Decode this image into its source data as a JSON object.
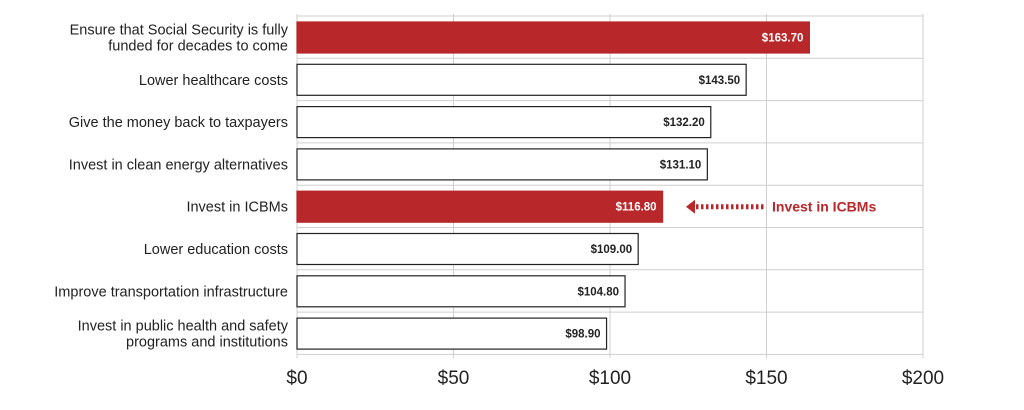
{
  "chart_data": {
    "type": "bar",
    "orientation": "horizontal",
    "categories": [
      [
        "Ensure that Social Security is fully",
        "funded for decades to come"
      ],
      [
        "Lower healthcare costs"
      ],
      [
        "Give the money back to taxpayers"
      ],
      [
        "Invest in clean energy alternatives"
      ],
      [
        "Invest in ICBMs"
      ],
      [
        "Lower education costs"
      ],
      [
        "Improve transportation infrastructure"
      ],
      [
        "Invest in public health and safety",
        "programs and institutions"
      ]
    ],
    "values": [
      163.7,
      143.5,
      132.2,
      131.1,
      116.8,
      109.0,
      104.8,
      98.9
    ],
    "value_labels": [
      "$163.70",
      "$143.50",
      "$132.20",
      "$131.10",
      "$116.80",
      "$109.00",
      "$104.80",
      "$98.90"
    ],
    "highlighted": [
      true,
      false,
      false,
      false,
      true,
      false,
      false,
      false
    ],
    "xlim": [
      0,
      200
    ],
    "xticks": [
      0,
      50,
      100,
      150,
      200
    ],
    "xtick_labels": [
      "$0",
      "$50",
      "$100",
      "$150",
      "$200"
    ],
    "grid": true,
    "annotation": {
      "text": "Invest in ICBMs",
      "target_index": 4,
      "style": "dashed-arrow-left"
    },
    "colors": {
      "highlight": "#b8272a",
      "bar_fill": "#ffffff",
      "bar_stroke": "#222222",
      "grid": "#cfcfcf",
      "highlight_text": "#ffffff",
      "text": "#222222"
    }
  }
}
